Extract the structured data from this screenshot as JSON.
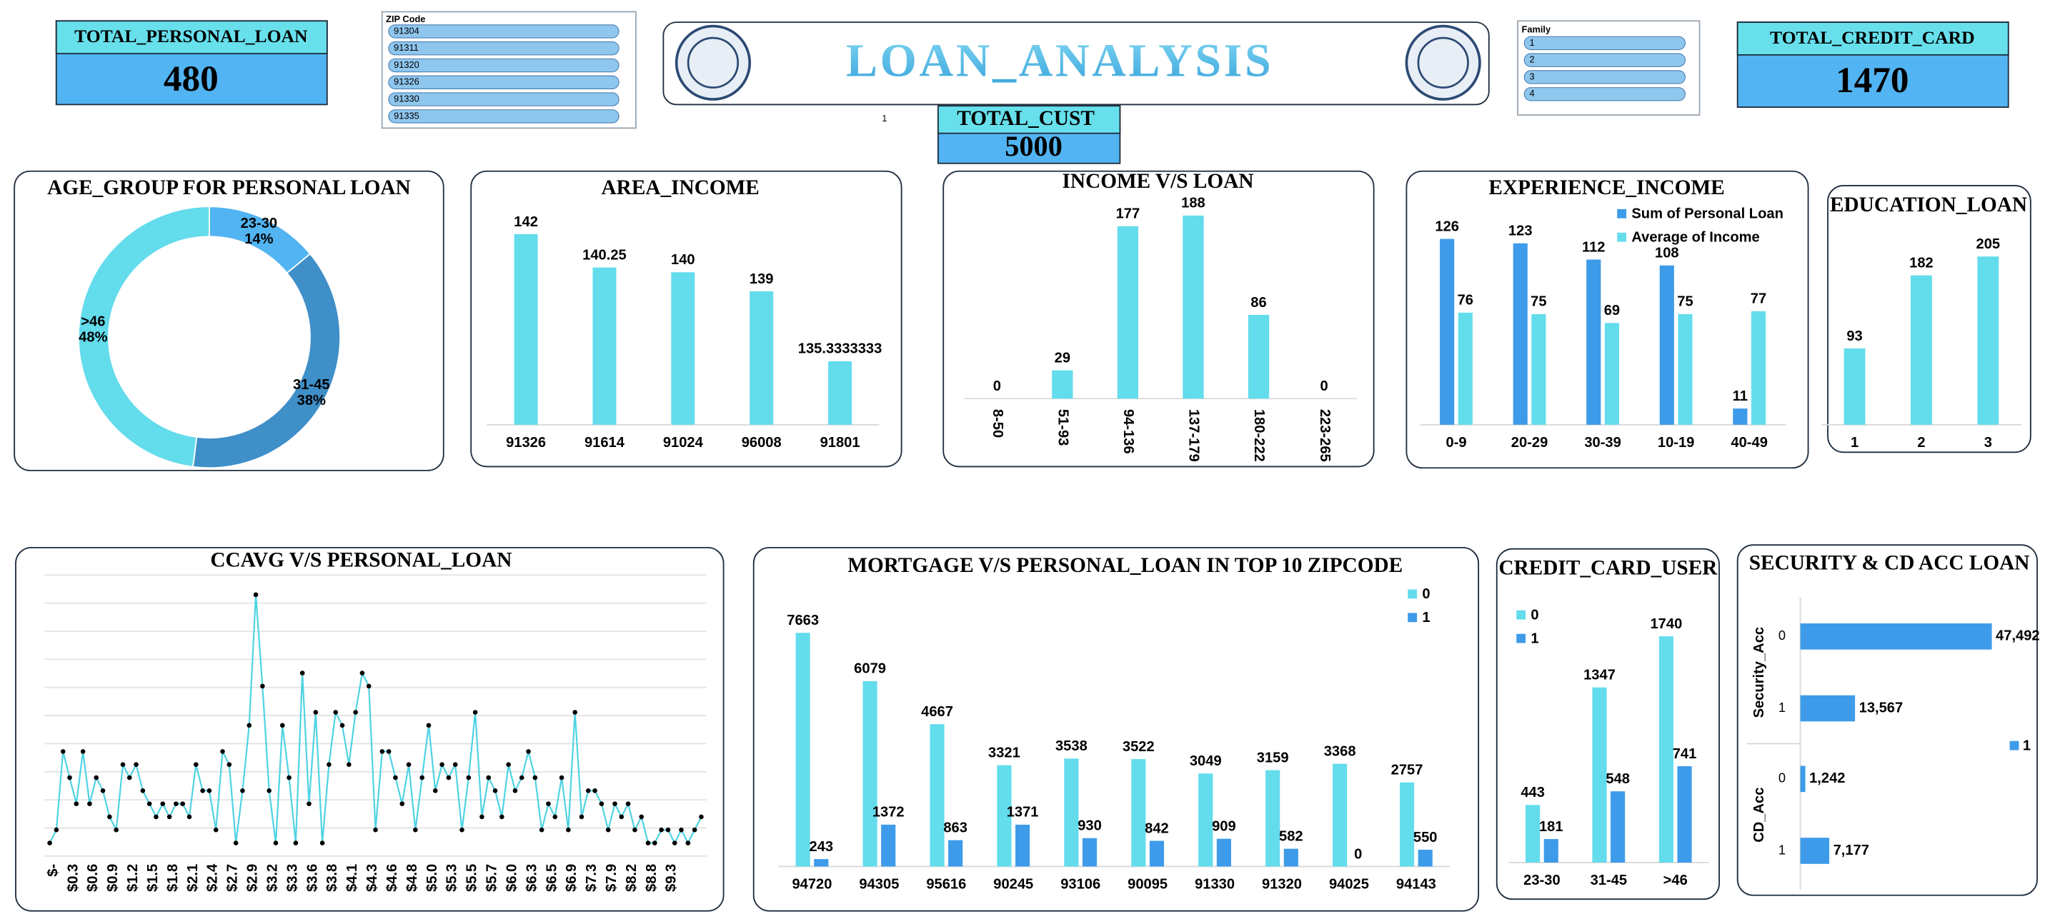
{
  "title": "LOAN_ANALYSIS",
  "kpis": [
    {
      "label": "TOTAL_PERSONAL_LOAN",
      "value": 480
    },
    {
      "label": "TOTAL_CREDIT_CARD",
      "value": 1470
    },
    {
      "label": "TOTAL_CUST",
      "value": 5000
    }
  ],
  "slicers": [
    {
      "title": "ZIP Code",
      "items": [
        "91304",
        "91311",
        "91320",
        "91326",
        "91330",
        "91335"
      ]
    },
    {
      "title": "Family",
      "items": [
        "1",
        "2",
        "3",
        "4"
      ]
    }
  ],
  "markers": [
    "1",
    "1"
  ],
  "chart_data": [
    {
      "type": "donut",
      "title": "AGE_GROUP FOR PERSONAL LOAN",
      "categories": [
        "23-30",
        "31-45",
        ">46"
      ],
      "values": [
        14,
        38,
        48
      ],
      "value_labels": [
        "14%",
        "38%",
        "48%"
      ],
      "colors": [
        "#52b4f2",
        "#3f8fc8",
        "#63dcec"
      ]
    },
    {
      "type": "bar",
      "title": "AREA_INCOME",
      "categories": [
        "91326",
        "91614",
        "91024",
        "96008",
        "91801"
      ],
      "values": [
        142,
        140.25,
        140,
        139,
        135.3333333
      ],
      "color": "#63dcec",
      "ylim": [
        132,
        144
      ]
    },
    {
      "type": "bar",
      "title": "INCOME V/S LOAN",
      "categories": [
        "8-50",
        "51-93",
        "94-136",
        "137-179",
        "180-222",
        "223-265"
      ],
      "values": [
        0,
        29,
        177,
        188,
        86,
        0
      ],
      "color": "#63dcec",
      "ylim": [
        0,
        200
      ]
    },
    {
      "type": "bar",
      "title": "EXPERIENCE_INCOME",
      "categories": [
        "0-9",
        "20-29",
        "30-39",
        "10-19",
        "40-49"
      ],
      "series": [
        {
          "name": "Sum of Personal Loan",
          "color": "#3d9be9",
          "values": [
            126,
            123,
            112,
            108,
            11
          ]
        },
        {
          "name": "Average of Income",
          "color": "#63dcec",
          "values": [
            76,
            75,
            69,
            75,
            77
          ]
        }
      ],
      "ylim": [
        0,
        140
      ]
    },
    {
      "type": "bar",
      "title": "EDUCATION_LOAN",
      "categories": [
        "1",
        "2",
        "3"
      ],
      "values": [
        93,
        182,
        205
      ],
      "color": "#63dcec",
      "ylim": [
        0,
        250
      ]
    },
    {
      "type": "line",
      "title": "CCAVG V/S PERSONAL_LOAN",
      "color": "#4fd3e3",
      "ylim": [
        0,
        21
      ],
      "categories": [
        "$-",
        null,
        null,
        "$0.3",
        null,
        null,
        "$0.6",
        null,
        null,
        "$0.9",
        null,
        null,
        "$1.2",
        null,
        null,
        "$1.5",
        null,
        null,
        "$1.8",
        null,
        null,
        "$2.1",
        null,
        null,
        "$2.4",
        null,
        null,
        "$2.7",
        null,
        null,
        "$2.9",
        null,
        null,
        "$3.2",
        null,
        null,
        "$3.3",
        null,
        null,
        "$3.6",
        null,
        null,
        "$3.8",
        null,
        null,
        "$4.1",
        null,
        null,
        "$4.3",
        null,
        null,
        "$4.6",
        null,
        null,
        "$4.8",
        null,
        null,
        "$5.0",
        null,
        null,
        "$5.3",
        null,
        null,
        "$5.5",
        null,
        null,
        "$5.7",
        null,
        null,
        "$6.0",
        null,
        null,
        "$6.3",
        null,
        null,
        "$6.5",
        null,
        null,
        "$6.9",
        null,
        null,
        "$7.3",
        null,
        null,
        "$7.9",
        null,
        null,
        "$8.2",
        null,
        null,
        "$8.8",
        null,
        null,
        "$9.3",
        null,
        null,
        null,
        null,
        null
      ],
      "values": [
        1,
        2,
        8,
        6,
        4,
        8,
        4,
        6,
        5,
        3,
        2,
        7,
        6,
        7,
        5,
        4,
        3,
        4,
        3,
        4,
        4,
        3,
        7,
        5,
        5,
        2,
        8,
        7,
        1,
        5,
        10,
        20,
        13,
        5,
        1,
        10,
        6,
        1,
        14,
        4,
        11,
        1,
        7,
        11,
        10,
        7,
        11,
        14,
        13,
        2,
        8,
        8,
        6,
        4,
        7,
        2,
        6,
        10,
        5,
        7,
        6,
        7,
        2,
        6,
        11,
        3,
        6,
        5,
        3,
        7,
        5,
        6,
        8,
        6,
        2,
        4,
        3,
        6,
        2,
        11,
        3,
        5,
        5,
        4,
        2,
        4,
        3,
        4,
        2,
        3,
        1,
        1,
        2,
        2,
        1,
        2,
        1,
        2,
        3
      ]
    },
    {
      "type": "bar",
      "title": "MORTGAGE V/S PERSONAL_LOAN IN TOP 10 ZIPCODE",
      "categories": [
        "94720",
        "94305",
        "95616",
        "90245",
        "93106",
        "90095",
        "91330",
        "91320",
        "94025",
        "94143"
      ],
      "series": [
        {
          "name": "0",
          "color": "#63dcec",
          "values": [
            7663,
            6079,
            4667,
            3321,
            3538,
            3522,
            3049,
            3159,
            3368,
            2757
          ]
        },
        {
          "name": "1",
          "color": "#3d9be9",
          "values": [
            243,
            1372,
            863,
            1371,
            930,
            842,
            909,
            582,
            0,
            550
          ]
        }
      ],
      "ylim": [
        0,
        9000
      ]
    },
    {
      "type": "bar",
      "title": "CREDIT_CARD_USER",
      "categories": [
        "23-30",
        "31-45",
        ">46"
      ],
      "series": [
        {
          "name": "0",
          "color": "#63dcec",
          "values": [
            443,
            1347,
            1740
          ]
        },
        {
          "name": "1",
          "color": "#3d9be9",
          "values": [
            181,
            548,
            741
          ]
        }
      ],
      "ylim": [
        0,
        2000
      ]
    },
    {
      "type": "hbar",
      "title": "SECURITY & CD ACC LOAN",
      "legend": "1",
      "color": "#3d9be9",
      "xlim": [
        0,
        49000
      ],
      "groups": [
        {
          "name": "Security_Acc",
          "categories": [
            "0",
            "1"
          ],
          "values": [
            47492,
            13567
          ],
          "value_labels": [
            "47,492",
            "13,567"
          ]
        },
        {
          "name": "CD_Acc",
          "categories": [
            "0",
            "1"
          ],
          "values": [
            1242,
            7177
          ],
          "value_labels": [
            "1,242",
            "7,177"
          ]
        }
      ]
    }
  ]
}
